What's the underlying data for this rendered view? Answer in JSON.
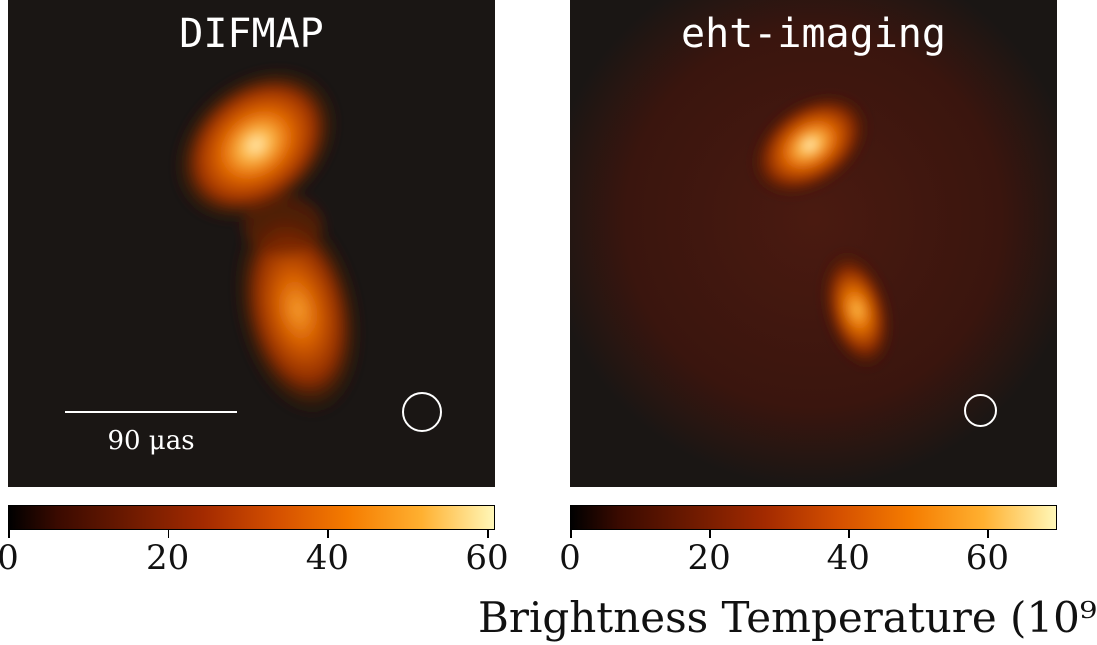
{
  "panels": {
    "left": {
      "title": "DIFMAP",
      "scalebar_label": "90 μas"
    },
    "right": {
      "title": "eht-imaging"
    }
  },
  "colorbars": {
    "left": {
      "ticks": [
        "0",
        "20",
        "40",
        "60"
      ],
      "range": [
        0,
        61
      ]
    },
    "right": {
      "ticks": [
        "0",
        "20",
        "40",
        "60"
      ],
      "range": [
        0,
        70
      ]
    }
  },
  "colorbar_title": "Brightness Temperature (10⁹",
  "colors": {
    "background": "#1a1614",
    "colormap": "afmhot",
    "marker": "#ffffff"
  }
}
